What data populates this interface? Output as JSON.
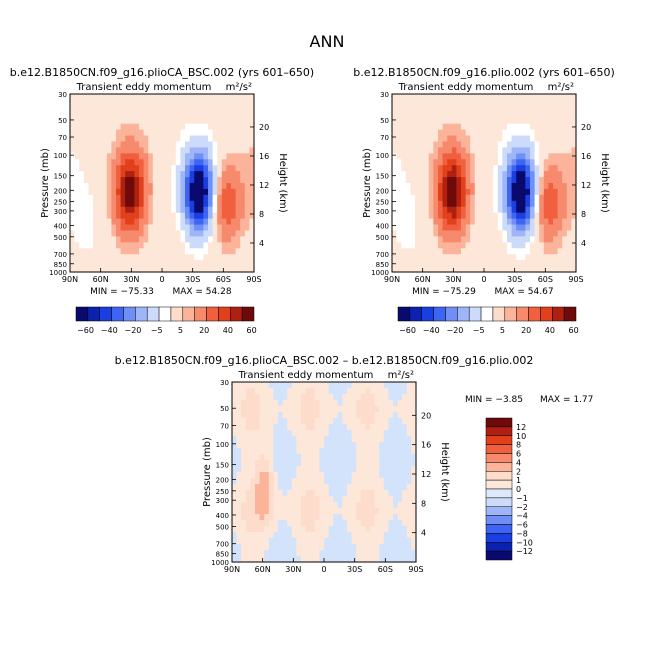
{
  "page": {
    "title": "ANN"
  },
  "chart_data": [
    {
      "type": "heatmap",
      "case_title": "b.e12.B1850CN.f09_g16.plioCA_BSC.002 (yrs 601–650)",
      "field_title": "Transient eddy momentum",
      "units": "m²/s²",
      "ylabel": "Pressure (mb)",
      "ylabel_right": "Height (km)",
      "x_ticks": [
        "90N",
        "60N",
        "30N",
        "0",
        "30S",
        "60S",
        "90S"
      ],
      "y_ticks": [
        "30",
        "50",
        "70",
        "100",
        "150",
        "200",
        "250",
        "300",
        "400",
        "500",
        "700",
        "850",
        "1000"
      ],
      "height_ticks": [
        "20",
        "16",
        "12",
        "8",
        "4"
      ],
      "min_text": "MIN = −75.33",
      "max_text": "MAX =  54.28",
      "min": -75.33,
      "max": 54.28,
      "contour_levels": [
        -60,
        -40,
        -20,
        -5,
        5,
        20,
        40,
        60
      ],
      "colorbar_labels": [
        "−60",
        "−40",
        "−20",
        "−5",
        "5",
        "20",
        "40",
        "60"
      ],
      "features": [
        {
          "lat": 31,
          "p": 210,
          "value": 52
        },
        {
          "lat": -36,
          "p": 210,
          "value": -74
        },
        {
          "lat": -63,
          "p": 260,
          "value": 28
        },
        {
          "lat": 73,
          "p": 400,
          "value": -6
        }
      ]
    },
    {
      "type": "heatmap",
      "case_title": "b.e12.B1850CN.f09_g16.plio.002 (yrs 601–650)",
      "field_title": "Transient eddy momentum",
      "units": "m²/s²",
      "ylabel": "Pressure (mb)",
      "ylabel_right": "Height (km)",
      "x_ticks": [
        "90N",
        "60N",
        "30N",
        "0",
        "30S",
        "60S",
        "90S"
      ],
      "y_ticks": [
        "30",
        "50",
        "70",
        "100",
        "150",
        "200",
        "250",
        "300",
        "400",
        "500",
        "700",
        "850",
        "1000"
      ],
      "height_ticks": [
        "20",
        "16",
        "12",
        "8",
        "4"
      ],
      "min_text": "MIN = −75.29",
      "max_text": "MAX =  54.67",
      "min": -75.29,
      "max": 54.67,
      "contour_levels": [
        -60,
        -40,
        -20,
        -5,
        5,
        20,
        40,
        60
      ],
      "colorbar_labels": [
        "−60",
        "−40",
        "−20",
        "−5",
        "5",
        "20",
        "40",
        "60"
      ],
      "features": [
        {
          "lat": 31,
          "p": 210,
          "value": 53
        },
        {
          "lat": -36,
          "p": 210,
          "value": -74
        },
        {
          "lat": -63,
          "p": 260,
          "value": 28
        },
        {
          "lat": 73,
          "p": 400,
          "value": -6
        }
      ]
    },
    {
      "type": "heatmap",
      "case_title": "b.e12.B1850CN.f09_g16.plioCA_BSC.002 – b.e12.B1850CN.f09_g16.plio.002",
      "field_title": "Transient eddy momentum",
      "units": "m²/s²",
      "ylabel": "Pressure (mb)",
      "ylabel_right": "Height (km)",
      "x_ticks": [
        "90N",
        "60N",
        "30N",
        "0",
        "30S",
        "60S",
        "90S"
      ],
      "y_ticks": [
        "30",
        "50",
        "70",
        "100",
        "150",
        "200",
        "250",
        "300",
        "400",
        "500",
        "700",
        "850",
        "1000"
      ],
      "height_ticks": [
        "20",
        "16",
        "12",
        "8",
        "4"
      ],
      "min_text": "MIN =  −3.85",
      "max_text": "MAX =   1.77",
      "min": -3.85,
      "max": 1.77,
      "contour_levels": [
        -12,
        -10,
        -8,
        -6,
        -4,
        -2,
        -1,
        0,
        1,
        2,
        4,
        6,
        8,
        10,
        12
      ],
      "colorbar_labels": [
        "12",
        "10",
        "8",
        "6",
        "4",
        "2",
        "1",
        "0",
        "−1",
        "−2",
        "−4",
        "−6",
        "−8",
        "−10",
        "−12"
      ],
      "features": [
        {
          "lat": 57,
          "p": 230,
          "value": 1.6
        }
      ]
    }
  ],
  "colors": {
    "top_scale": [
      "#0a0a6e",
      "#0b22b0",
      "#1a3ee0",
      "#3d64f2",
      "#6f8ff7",
      "#9fb5f9",
      "#cddbfb",
      "#ffffff",
      "#fddccb",
      "#fbb39a",
      "#f78a6c",
      "#f0603f",
      "#e0401a",
      "#b02010",
      "#6e0a0a"
    ],
    "diff_scale": [
      "#0a0a6e",
      "#0b22b0",
      "#1a3ee0",
      "#3d64f2",
      "#6f8ff7",
      "#9fb5f9",
      "#cddbfb",
      "#dde8fc",
      "#fde7d9",
      "#fddccb",
      "#fbb39a",
      "#f78a6c",
      "#f0603f",
      "#e0401a",
      "#b02010",
      "#6e0a0a"
    ],
    "axis": "#000000"
  }
}
